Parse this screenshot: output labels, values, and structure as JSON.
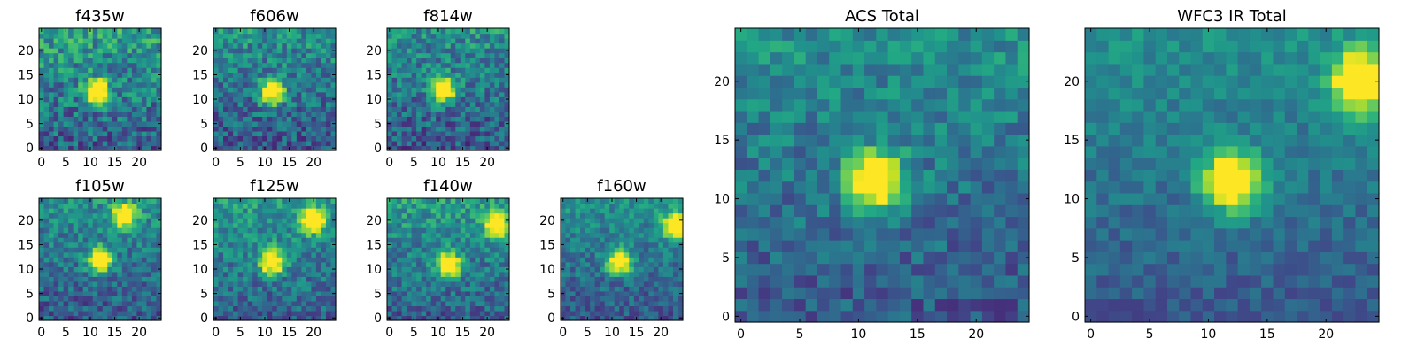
{
  "chart_data": [
    {
      "type": "heatmap",
      "title": "f435w",
      "grid": false,
      "colormap": "viridis",
      "size": [
        25,
        25
      ],
      "xlim": [
        0,
        24
      ],
      "ylim": [
        0,
        24
      ],
      "xticks": [
        0,
        5,
        10,
        15,
        20
      ],
      "yticks": [
        0,
        5,
        10,
        15,
        20
      ],
      "source_peaks": [
        {
          "x": 11.5,
          "y": 11.5,
          "value": 1.0
        }
      ],
      "background_level": 0.55,
      "noise": 0.45,
      "seed": 11
    },
    {
      "type": "heatmap",
      "title": "f606w",
      "grid": false,
      "colormap": "viridis",
      "size": [
        25,
        25
      ],
      "xlim": [
        0,
        24
      ],
      "ylim": [
        0,
        24
      ],
      "xticks": [
        0,
        5,
        10,
        15,
        20
      ],
      "yticks": [
        0,
        5,
        10,
        15,
        20
      ],
      "source_peaks": [
        {
          "x": 11.5,
          "y": 11.5,
          "value": 1.0
        }
      ],
      "background_level": 0.5,
      "noise": 0.4,
      "seed": 23
    },
    {
      "type": "heatmap",
      "title": "f814w",
      "grid": false,
      "colormap": "viridis",
      "size": [
        25,
        25
      ],
      "xlim": [
        0,
        24
      ],
      "ylim": [
        0,
        24
      ],
      "xticks": [
        0,
        5,
        10,
        15,
        20
      ],
      "yticks": [
        0,
        5,
        10,
        15,
        20
      ],
      "source_peaks": [
        {
          "x": 11,
          "y": 12,
          "value": 1.0
        }
      ],
      "background_level": 0.5,
      "noise": 0.4,
      "seed": 37
    },
    {
      "type": "heatmap",
      "title": "f105w",
      "grid": false,
      "colormap": "viridis",
      "size": [
        25,
        25
      ],
      "xlim": [
        0,
        24
      ],
      "ylim": [
        0,
        24
      ],
      "xticks": [
        0,
        5,
        10,
        15,
        20
      ],
      "yticks": [
        0,
        5,
        10,
        15,
        20
      ],
      "source_peaks": [
        {
          "x": 12,
          "y": 12,
          "value": 1.0
        },
        {
          "x": 17,
          "y": 21,
          "value": 0.85
        }
      ],
      "background_level": 0.5,
      "noise": 0.35,
      "seed": 41
    },
    {
      "type": "heatmap",
      "title": "f125w",
      "grid": false,
      "colormap": "viridis",
      "size": [
        25,
        25
      ],
      "xlim": [
        0,
        24
      ],
      "ylim": [
        0,
        24
      ],
      "xticks": [
        0,
        5,
        10,
        15,
        20
      ],
      "yticks": [
        0,
        5,
        10,
        15,
        20
      ],
      "source_peaks": [
        {
          "x": 11.5,
          "y": 11.5,
          "value": 0.95
        },
        {
          "x": 20,
          "y": 20,
          "value": 0.9
        }
      ],
      "background_level": 0.55,
      "noise": 0.35,
      "seed": 53
    },
    {
      "type": "heatmap",
      "title": "f140w",
      "grid": false,
      "colormap": "viridis",
      "size": [
        25,
        25
      ],
      "xlim": [
        0,
        24
      ],
      "ylim": [
        0,
        24
      ],
      "xticks": [
        0,
        5,
        10,
        15,
        20
      ],
      "yticks": [
        0,
        5,
        10,
        15,
        20
      ],
      "source_peaks": [
        {
          "x": 12,
          "y": 11,
          "value": 1.0
        },
        {
          "x": 22,
          "y": 19,
          "value": 0.9
        }
      ],
      "background_level": 0.55,
      "noise": 0.35,
      "seed": 67
    },
    {
      "type": "heatmap",
      "title": "f160w",
      "grid": false,
      "colormap": "viridis",
      "size": [
        25,
        25
      ],
      "xlim": [
        0,
        24
      ],
      "ylim": [
        0,
        24
      ],
      "xticks": [
        0,
        5,
        10,
        15,
        20
      ],
      "yticks": [
        0,
        5,
        10,
        15,
        20
      ],
      "source_peaks": [
        {
          "x": 11.5,
          "y": 11.5,
          "value": 0.95
        },
        {
          "x": 23,
          "y": 19,
          "value": 1.0
        }
      ],
      "background_level": 0.5,
      "noise": 0.3,
      "seed": 79
    },
    {
      "type": "heatmap",
      "title": "ACS Total",
      "grid": false,
      "colormap": "viridis",
      "size": [
        25,
        25
      ],
      "xlim": [
        0,
        24
      ],
      "ylim": [
        0,
        24
      ],
      "xticks": [
        0,
        5,
        10,
        15,
        20
      ],
      "yticks": [
        0,
        5,
        10,
        15,
        20
      ],
      "source_peaks": [
        {
          "x": 11.5,
          "y": 11.5,
          "value": 1.0
        }
      ],
      "background_level": 0.5,
      "noise": 0.3,
      "seed": 83
    },
    {
      "type": "heatmap",
      "title": "WFC3 IR Total",
      "grid": false,
      "colormap": "viridis",
      "size": [
        25,
        25
      ],
      "xlim": [
        0,
        24
      ],
      "ylim": [
        0,
        24
      ],
      "xticks": [
        0,
        5,
        10,
        15,
        20
      ],
      "yticks": [
        0,
        5,
        10,
        15,
        20
      ],
      "source_peaks": [
        {
          "x": 12,
          "y": 11.5,
          "value": 1.0
        },
        {
          "x": 23,
          "y": 20,
          "value": 1.0
        }
      ],
      "background_level": 0.5,
      "noise": 0.2,
      "seed": 97
    }
  ]
}
